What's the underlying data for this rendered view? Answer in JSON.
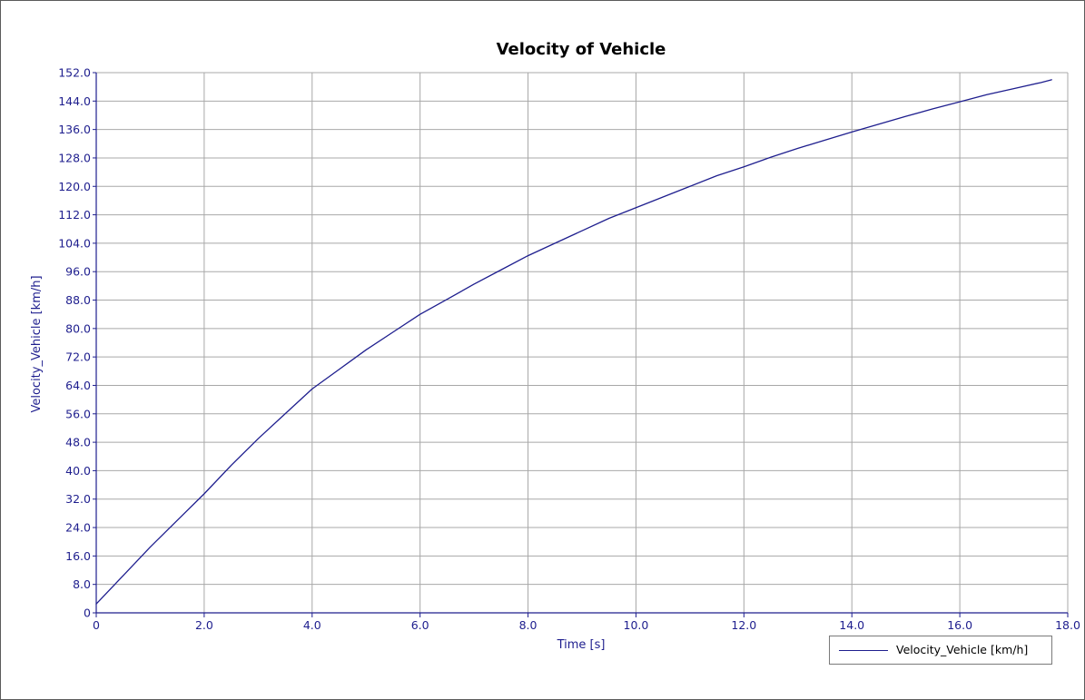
{
  "chart_data": {
    "type": "line",
    "title": "Velocity of Vehicle",
    "xlabel": "Time [s]",
    "ylabel": "Velocity_Vehicle [km/h]",
    "xlim": [
      0,
      18
    ],
    "ylim": [
      0,
      152
    ],
    "x_ticks": [
      "0",
      "2.0",
      "4.0",
      "6.0",
      "8.0",
      "10.0",
      "12.0",
      "14.0",
      "16.0",
      "18.0"
    ],
    "y_ticks": [
      "0",
      "8.0",
      "16.0",
      "24.0",
      "32.0",
      "40.0",
      "48.0",
      "56.0",
      "64.0",
      "72.0",
      "80.0",
      "88.0",
      "96.0",
      "104.0",
      "112.0",
      "120.0",
      "128.0",
      "136.0",
      "144.0",
      "152.0"
    ],
    "grid": true,
    "legend_position": "bottom-right",
    "series": [
      {
        "name": "Velocity_Vehicle [km/h]",
        "color": "#1e1e8e",
        "x": [
          0,
          0.5,
          1.0,
          1.5,
          2.0,
          2.5,
          3.0,
          3.5,
          4.0,
          4.5,
          5.0,
          5.5,
          6.0,
          6.5,
          7.0,
          7.5,
          8.0,
          8.5,
          9.0,
          9.5,
          10.0,
          10.5,
          11.0,
          11.5,
          12.0,
          12.5,
          13.0,
          13.5,
          14.0,
          14.5,
          15.0,
          15.5,
          16.0,
          16.5,
          17.0,
          17.5,
          17.7
        ],
        "y": [
          2.5,
          10.5,
          18.5,
          26.0,
          33.5,
          41.5,
          49.0,
          56.0,
          63.0,
          68.5,
          74.0,
          79.0,
          84.0,
          88.2,
          92.5,
          96.5,
          100.5,
          104.0,
          107.5,
          111.0,
          114.0,
          117.0,
          120.0,
          123.0,
          125.5,
          128.2,
          130.7,
          133.0,
          135.3,
          137.5,
          139.7,
          141.8,
          143.8,
          145.8,
          147.5,
          149.2,
          150.0
        ]
      }
    ]
  }
}
